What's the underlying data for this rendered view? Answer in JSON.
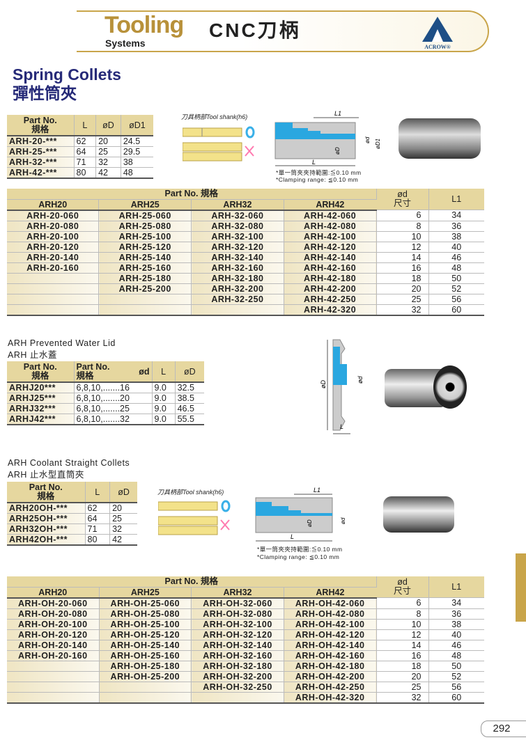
{
  "header": {
    "tooling": "Tooling",
    "systems": "Systems",
    "cnc": "CNC刀柄",
    "logo_text": "ACROW®"
  },
  "spring": {
    "title_en": "Spring Collets",
    "title_zh": "彈性筒夾",
    "small_table": {
      "headers": [
        "Part No.",
        "規格",
        "L",
        "øD",
        "øD1"
      ],
      "rows": [
        [
          "ARH-20-***",
          "62",
          "20",
          "24.5"
        ],
        [
          "ARH-25-***",
          "64",
          "25",
          "29.5"
        ],
        [
          "ARH-32-***",
          "71",
          "32",
          "38"
        ],
        [
          "ARH-42-***",
          "80",
          "42",
          "48"
        ]
      ]
    },
    "shank_label": "刀具柄部Tool shank(h6)",
    "drawing_labels": {
      "L1": "L1",
      "L": "L",
      "d": "ød",
      "D": "øD",
      "D1": "øD1"
    },
    "note_zh": "*單一筒夾夾持範圍:≦0.10 mm",
    "note_en": "*Clamping range: ≦0.10 mm",
    "big_table": {
      "group_header": "Part No.  規格",
      "columns": [
        "ARH20",
        "ARH25",
        "ARH32",
        "ARH42"
      ],
      "d_header": "ød",
      "d_header_zh": "尺寸",
      "l1_header": "L1",
      "rows": [
        [
          "ARH-20-060",
          "ARH-25-060",
          "ARH-32-060",
          "ARH-42-060",
          "6",
          "34"
        ],
        [
          "ARH-20-080",
          "ARH-25-080",
          "ARH-32-080",
          "ARH-42-080",
          "8",
          "36"
        ],
        [
          "ARH-20-100",
          "ARH-25-100",
          "ARH-32-100",
          "ARH-42-100",
          "10",
          "38"
        ],
        [
          "ARH-20-120",
          "ARH-25-120",
          "ARH-32-120",
          "ARH-42-120",
          "12",
          "40"
        ],
        [
          "ARH-20-140",
          "ARH-25-140",
          "ARH-32-140",
          "ARH-42-140",
          "14",
          "46"
        ],
        [
          "ARH-20-160",
          "ARH-25-160",
          "ARH-32-160",
          "ARH-42-160",
          "16",
          "48"
        ],
        [
          "",
          "ARH-25-180",
          "ARH-32-180",
          "ARH-42-180",
          "18",
          "50"
        ],
        [
          "",
          "ARH-25-200",
          "ARH-32-200",
          "ARH-42-200",
          "20",
          "52"
        ],
        [
          "",
          "",
          "ARH-32-250",
          "ARH-42-250",
          "25",
          "56"
        ],
        [
          "",
          "",
          "",
          "ARH-42-320",
          "32",
          "60"
        ]
      ]
    }
  },
  "lid": {
    "title_en": "ARH Prevented Water Lid",
    "title_zh": "ARH 止水蓋",
    "table": {
      "headers": [
        "Part No.",
        "規格",
        "Part No.",
        "規格",
        "ød",
        "L",
        "øD"
      ],
      "rows": [
        [
          "ARHJ20***",
          "6,8,10,.......16",
          "9.0",
          "32.5"
        ],
        [
          "ARHJ25***",
          "6,8,10,.......20",
          "9.0",
          "38.5"
        ],
        [
          "ARHJ32***",
          "6,8,10,.......25",
          "9.0",
          "46.5"
        ],
        [
          "ARHJ42***",
          "6,8,10,.......32",
          "9.0",
          "55.5"
        ]
      ]
    },
    "drawing_labels": {
      "D": "øD",
      "d": "ød",
      "L": "L"
    }
  },
  "coolant": {
    "title_en": "ARH Coolant Straight Collets",
    "title_zh": "ARH 止水型直筒夾",
    "small_table": {
      "headers": [
        "Part No.",
        "規格",
        "L",
        "øD"
      ],
      "rows": [
        [
          "ARH20OH-***",
          "62",
          "20"
        ],
        [
          "ARH25OH-***",
          "64",
          "25"
        ],
        [
          "ARH32OH-***",
          "71",
          "32"
        ],
        [
          "ARH42OH-***",
          "80",
          "42"
        ]
      ]
    },
    "shank_label": "刀具柄部Tool shank(h6)",
    "drawing_labels": {
      "L1": "L1",
      "L": "L",
      "d": "ød",
      "D": "øD"
    },
    "note_zh": "*單一筒夾夾持範圍:≦0.10 mm",
    "note_en": "*Clamping range: ≦0.10 mm",
    "big_table": {
      "group_header": "Part No.  規格",
      "columns": [
        "ARH20",
        "ARH25",
        "ARH32",
        "ARH42"
      ],
      "d_header": "ød",
      "d_header_zh": "尺寸",
      "l1_header": "L1",
      "rows": [
        [
          "ARH-OH-20-060",
          "ARH-OH-25-060",
          "ARH-OH-32-060",
          "ARH-OH-42-060",
          "6",
          "34"
        ],
        [
          "ARH-OH-20-080",
          "ARH-OH-25-080",
          "ARH-OH-32-080",
          "ARH-OH-42-080",
          "8",
          "36"
        ],
        [
          "ARH-OH-20-100",
          "ARH-OH-25-100",
          "ARH-OH-32-100",
          "ARH-OH-42-100",
          "10",
          "38"
        ],
        [
          "ARH-OH-20-120",
          "ARH-OH-25-120",
          "ARH-OH-32-120",
          "ARH-OH-42-120",
          "12",
          "40"
        ],
        [
          "ARH-OH-20-140",
          "ARH-OH-25-140",
          "ARH-OH-32-140",
          "ARH-OH-42-140",
          "14",
          "46"
        ],
        [
          "ARH-OH-20-160",
          "ARH-OH-25-160",
          "ARH-OH-32-160",
          "ARH-OH-42-160",
          "16",
          "48"
        ],
        [
          "",
          "ARH-OH-25-180",
          "ARH-OH-32-180",
          "ARH-OH-42-180",
          "18",
          "50"
        ],
        [
          "",
          "ARH-OH-25-200",
          "ARH-OH-32-200",
          "ARH-OH-42-200",
          "20",
          "52"
        ],
        [
          "",
          "",
          "ARH-OH-32-250",
          "ARH-OH-42-250",
          "25",
          "56"
        ],
        [
          "",
          "",
          "",
          "ARH-OH-42-320",
          "32",
          "60"
        ]
      ]
    }
  },
  "page_number": "292",
  "colors": {
    "gold": "#c9a54a",
    "navy": "#262a78",
    "header_tan": "#e6d79f",
    "blue_fill": "#2aa7e0"
  }
}
